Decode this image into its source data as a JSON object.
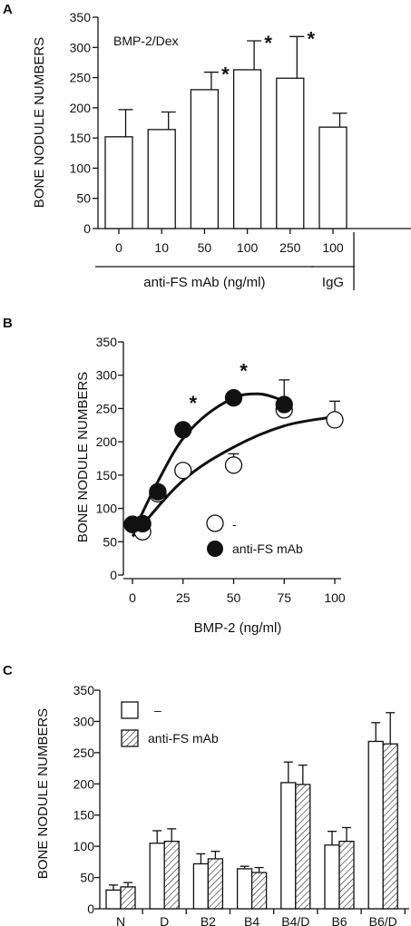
{
  "chart_data": [
    {
      "panel": "A",
      "type": "bar",
      "annotation": "BMP-2/Dex",
      "ylabel": "BONE NODULE NUMBERS",
      "ylim": [
        0,
        350
      ],
      "yticks": [
        "0",
        "50",
        "100",
        "150",
        "200",
        "250",
        "300",
        "350"
      ],
      "categories": [
        "0",
        "10",
        "50",
        "100",
        "250",
        "100"
      ],
      "values": [
        152,
        164,
        230,
        263,
        249,
        168
      ],
      "errors": [
        45,
        29,
        29,
        48,
        69,
        23
      ],
      "significance": [
        "",
        "",
        "*",
        "*",
        "*",
        ""
      ],
      "groups": [
        {
          "label": "anti-FS mAb (ng/ml)",
          "range": [
            0,
            4
          ]
        },
        {
          "label": "IgG",
          "range": [
            5,
            5
          ]
        }
      ]
    },
    {
      "panel": "B",
      "type": "scatter",
      "ylabel": "BONE NODULE NUMBERS",
      "xlabel": "BMP-2 (ng/ml)",
      "xlim": [
        0,
        100
      ],
      "ylim": [
        0,
        350
      ],
      "xticks": [
        "0",
        "25",
        "50",
        "75",
        "100"
      ],
      "yticks": [
        "0",
        "50",
        "100",
        "150",
        "200",
        "250",
        "300",
        "350"
      ],
      "legend_position": "bottom-center",
      "series": [
        {
          "name": "-",
          "marker": "open-circle",
          "x": [
            0,
            5,
            12.5,
            25,
            50,
            75,
            100
          ],
          "y": [
            76,
            65,
            122,
            157,
            165,
            248,
            233
          ],
          "err": [
            0,
            0,
            0,
            0,
            17,
            0,
            28
          ]
        },
        {
          "name": "anti-FS mAb",
          "marker": "filled-circle",
          "x": [
            0,
            5,
            12.5,
            25,
            50,
            75
          ],
          "y": [
            76,
            77,
            125,
            218,
            266,
            256
          ],
          "err": [
            0,
            0,
            0,
            0,
            0,
            37
          ]
        }
      ],
      "significance": [
        {
          "x": 25,
          "y": 218,
          "label": "*"
        },
        {
          "x": 50,
          "y": 266,
          "label": "*"
        }
      ]
    },
    {
      "panel": "C",
      "type": "bar",
      "ylabel": "BONE NODULE NUMBERS",
      "ylim": [
        0,
        350
      ],
      "yticks": [
        "0",
        "50",
        "100",
        "150",
        "200",
        "250",
        "300",
        "350"
      ],
      "categories": [
        "N",
        "D",
        "B2",
        "B4",
        "B4/D",
        "B6",
        "B6/D"
      ],
      "legend_position": "top-left",
      "series": [
        {
          "name": "–",
          "pattern": "open",
          "values": [
            30,
            105,
            72,
            64,
            202,
            102,
            268
          ],
          "errors": [
            8,
            20,
            16,
            4,
            33,
            22,
            30
          ]
        },
        {
          "name": "anti-FS mAb",
          "pattern": "hatched",
          "values": [
            35,
            108,
            80,
            58,
            199,
            108,
            264
          ],
          "errors": [
            7,
            20,
            12,
            8,
            31,
            22,
            50
          ]
        }
      ]
    }
  ]
}
